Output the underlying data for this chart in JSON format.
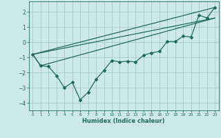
{
  "xlabel": "Humidex (Indice chaleur)",
  "background_color": "#cce8e8",
  "grid_color": "#aacece",
  "line_color": "#1e6b5a",
  "xlim": [
    -0.5,
    23.5
  ],
  "ylim": [
    -4.5,
    2.7
  ],
  "yticks": [
    -4,
    -3,
    -2,
    -1,
    0,
    1,
    2
  ],
  "xticks": [
    0,
    1,
    2,
    3,
    4,
    5,
    6,
    7,
    8,
    9,
    10,
    11,
    12,
    13,
    14,
    15,
    16,
    17,
    18,
    19,
    20,
    21,
    22,
    23
  ],
  "line1_x": [
    0,
    1,
    2,
    3,
    4,
    5,
    6,
    7,
    8,
    9,
    10,
    11,
    12,
    13,
    14,
    15,
    16,
    17,
    18,
    19,
    20,
    21,
    22,
    23
  ],
  "line1_y": [
    -0.8,
    -1.55,
    -1.6,
    -2.2,
    -3.0,
    -2.65,
    -3.8,
    -3.3,
    -2.45,
    -1.85,
    -1.2,
    -1.3,
    -1.25,
    -1.3,
    -0.85,
    -0.7,
    -0.6,
    0.05,
    0.05,
    0.4,
    0.35,
    1.8,
    1.6,
    2.3
  ],
  "line2_x": [
    0,
    23
  ],
  "line2_y": [
    -0.8,
    2.3
  ],
  "line3_x": [
    0,
    23
  ],
  "line3_y": [
    -0.8,
    1.6
  ],
  "line4_x": [
    0,
    1,
    23
  ],
  "line4_y": [
    -0.8,
    -1.55,
    1.6
  ]
}
